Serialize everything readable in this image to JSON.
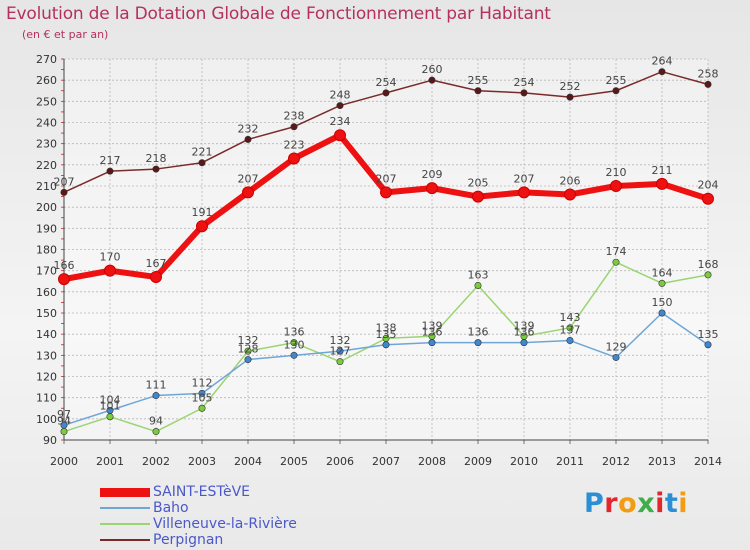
{
  "title": "Evolution de la Dotation Globale de Fonctionnement par Habitant",
  "subtitle": "(en € et par an)",
  "brand": {
    "logo_text": "Proxiti",
    "letter_colors": [
      "#2b8fd6",
      "#e3262c",
      "#f39c12",
      "#3fae49",
      "#e3262c",
      "#2b8fd6",
      "#f39c12"
    ]
  },
  "colors": {
    "title": "#b5305e",
    "axis_text": "#333333",
    "legend_text": "#4a58c9",
    "grid": "#b8b8b8",
    "axis_tick_red": "#cc2222"
  },
  "chart_data": {
    "type": "line",
    "title": "Evolution de la Dotation Globale de Fonctionnement par Habitant",
    "subtitle": "(en € et par an)",
    "x": [
      2000,
      2001,
      2002,
      2003,
      2004,
      2005,
      2006,
      2007,
      2008,
      2009,
      2010,
      2011,
      2012,
      2013,
      2014
    ],
    "ylim": [
      90,
      270
    ],
    "yticks": [
      90,
      100,
      110,
      120,
      130,
      140,
      150,
      160,
      170,
      180,
      190,
      200,
      210,
      220,
      230,
      240,
      250,
      260,
      270
    ],
    "grid": true,
    "legend_position": "bottom-left",
    "series": [
      {
        "name": "SAINT-ESTèVE",
        "color": "#ee1111",
        "marker": "#ee1111",
        "width": 6,
        "values": [
          166,
          170,
          167,
          191,
          207,
          223,
          234,
          207,
          209,
          205,
          207,
          206,
          210,
          211,
          204
        ]
      },
      {
        "name": "Baho",
        "color": "#6fa6d6",
        "marker": "#3f87d0",
        "width": 1.5,
        "values": [
          97,
          104,
          111,
          112,
          128,
          130,
          132,
          135,
          136,
          136,
          136,
          137,
          129,
          150,
          135
        ]
      },
      {
        "name": "Villeneuve-la-Rivière",
        "color": "#9bd472",
        "marker": "#7acc3c",
        "width": 1.5,
        "values": [
          94,
          101,
          94,
          105,
          132,
          136,
          127,
          138,
          139,
          163,
          139,
          143,
          174,
          164,
          168
        ]
      },
      {
        "name": "Perpignan",
        "color": "#7a2a2a",
        "marker": "#5a1818",
        "width": 1.5,
        "values": [
          207,
          217,
          218,
          221,
          232,
          238,
          248,
          254,
          260,
          255,
          254,
          252,
          255,
          264,
          258
        ]
      }
    ],
    "data_labels": [
      [
        166,
        170,
        167,
        191,
        207,
        223,
        234,
        207,
        209,
        205,
        207,
        206,
        210,
        211,
        204
      ],
      [
        97,
        104,
        111,
        112,
        128,
        130,
        132,
        135,
        136,
        136,
        136,
        137,
        129,
        150,
        135
      ],
      [
        94,
        101,
        94,
        105,
        132,
        136,
        127,
        138,
        139,
        163,
        139,
        143,
        174,
        164,
        168
      ],
      [
        207,
        217,
        218,
        221,
        232,
        238,
        248,
        254,
        260,
        255,
        254,
        252,
        255,
        264,
        258
      ]
    ]
  }
}
